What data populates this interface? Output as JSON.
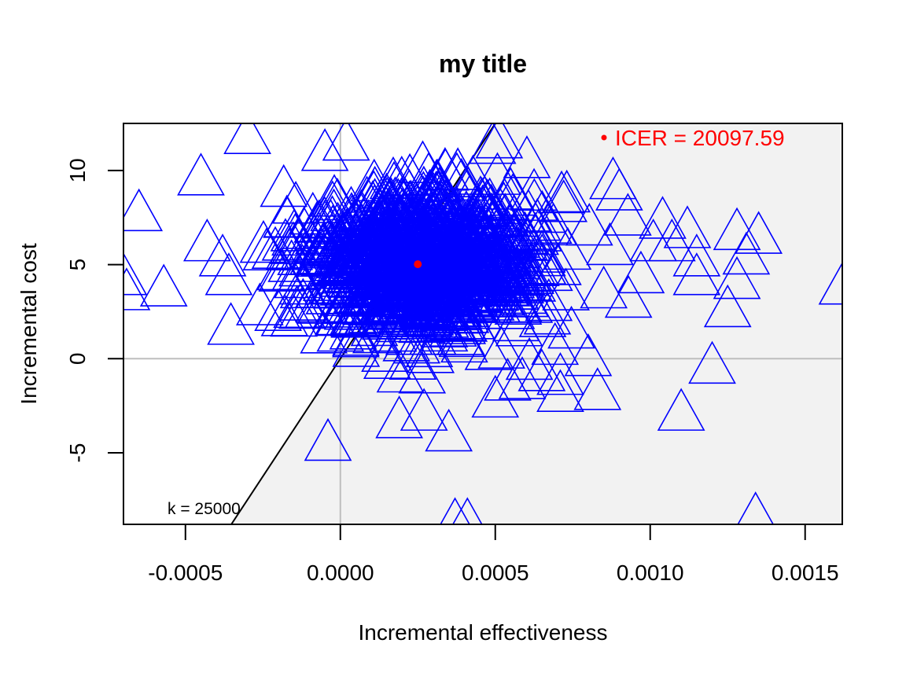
{
  "chart_data": {
    "type": "scatter",
    "title": "my title",
    "xlabel": "Incremental effectiveness",
    "ylabel": "Incremental cost",
    "xlim": [
      -0.0007,
      0.00162
    ],
    "ylim": [
      -8.8,
      12.5
    ],
    "x_ticks": [
      -0.0005,
      0.0,
      0.0005,
      0.001,
      0.0015
    ],
    "x_tick_labels": [
      "-0.0005",
      "0.0000",
      "0.0005",
      "0.0010",
      "0.0015"
    ],
    "y_ticks": [
      -5,
      0,
      5,
      10
    ],
    "y_tick_labels": [
      "-5",
      "0",
      "5",
      "10"
    ],
    "reference_lines": {
      "x": 0,
      "y": 0
    },
    "wtp_line": {
      "k": 25000,
      "label": "k = 25000"
    },
    "marker": "triangle-open",
    "colors": {
      "points": "#0000ff",
      "icer": "#ff0000",
      "acceptable_region": "#f2f2f2",
      "reference_lines": "#bebebe",
      "wtp_line": "#000000"
    },
    "icer": {
      "x": 0.00025,
      "y": 5.02,
      "label": "ICER = 20097.59",
      "value": 20097.59
    },
    "series": [
      {
        "points_outlying": [
          [
            -0.00065,
            7.6
          ],
          [
            -0.0007,
            4.2
          ],
          [
            -0.00069,
            3.4
          ],
          [
            -0.00057,
            3.6
          ],
          [
            -0.00045,
            9.5
          ],
          [
            -0.00043,
            6.0
          ],
          [
            -0.00038,
            5.2
          ],
          [
            -0.00036,
            4.2
          ],
          [
            -0.0003,
            11.7
          ],
          [
            -0.00026,
            2.6
          ],
          [
            -0.00021,
            5.6
          ],
          [
            -0.00015,
            2.0
          ],
          [
            -5e-05,
            10.8
          ],
          [
            -4e-05,
            -4.6
          ],
          [
            0.0,
            1.2
          ],
          [
            5e-05,
            0.9
          ],
          [
            0.00019,
            -3.4
          ],
          [
            0.00027,
            -3.0
          ],
          [
            0.00035,
            -4.1
          ],
          [
            0.00037,
            -8.8
          ],
          [
            0.00041,
            -8.8
          ],
          [
            0.0005,
            -2.3
          ],
          [
            0.00052,
            0.3
          ],
          [
            0.00054,
            -1.4
          ],
          [
            0.00061,
            -0.3
          ],
          [
            0.00065,
            -0.9
          ],
          [
            0.00071,
            -2.0
          ],
          [
            0.00071,
            -1.1
          ],
          [
            0.0008,
            -0.1
          ],
          [
            0.00083,
            -1.9
          ],
          [
            0.00085,
            3.5
          ],
          [
            0.00087,
            5.8
          ],
          [
            0.00088,
            9.3
          ],
          [
            0.0009,
            8.7
          ],
          [
            0.00093,
            3.0
          ],
          [
            0.00097,
            4.3
          ],
          [
            0.00101,
            6.0
          ],
          [
            0.00104,
            7.2
          ],
          [
            0.00107,
            6.0
          ],
          [
            0.00112,
            6.7
          ],
          [
            0.00115,
            5.2
          ],
          [
            0.00115,
            4.2
          ],
          [
            0.0011,
            -3.0
          ],
          [
            0.0012,
            -0.5
          ],
          [
            0.00125,
            2.5
          ],
          [
            0.00128,
            4.0
          ],
          [
            0.00128,
            6.6
          ],
          [
            0.00131,
            5.3
          ],
          [
            0.00135,
            6.4
          ],
          [
            0.00134,
            -8.5
          ],
          [
            0.00162,
            3.7
          ]
        ],
        "cloud": {
          "count": 1000,
          "x_mean": 0.00026,
          "x_sd": 0.00019,
          "y_mean": 5.0,
          "y_sd": 1.9,
          "seed": 17
        }
      }
    ]
  }
}
